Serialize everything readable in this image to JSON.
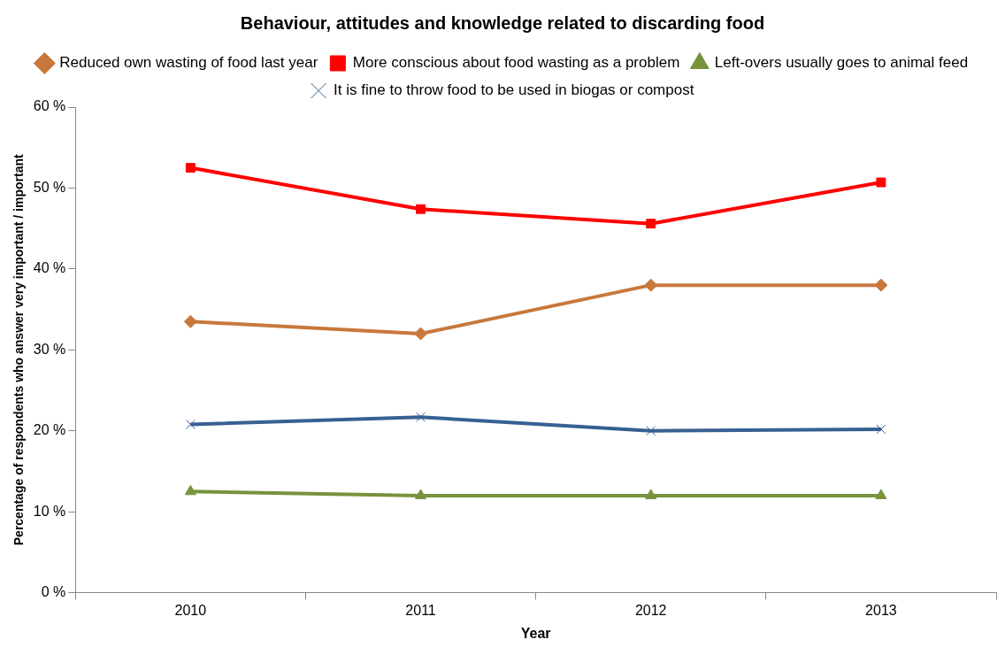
{
  "chart_data": {
    "type": "line",
    "title": "Behaviour, attitudes and knowledge related to discarding food",
    "xlabel": "Year",
    "ylabel": "Percentage of respondents who answer very important / important",
    "categories": [
      "2010",
      "2011",
      "2012",
      "2013"
    ],
    "series": [
      {
        "name": "Reduced own wasting of food last year",
        "color": "#c8783c",
        "marker": "diamond",
        "values": [
          33.5,
          32,
          38,
          38
        ]
      },
      {
        "name": "More conscious about food wasting as a problem",
        "color": "#ff0000",
        "marker": "square",
        "values": [
          52.5,
          47.4,
          45.6,
          50.7
        ]
      },
      {
        "name": "Left-overs usually goes to animal feed",
        "color": "#77933c",
        "marker": "triangle",
        "values": [
          12.5,
          12,
          12,
          12
        ]
      },
      {
        "name": "It is fine to throw food to be used in biogas or compost",
        "color": "#376092",
        "marker": "cross",
        "values": [
          20.8,
          21.7,
          20,
          20.2
        ]
      }
    ],
    "ylim": [
      0,
      60
    ],
    "yticks": [
      {
        "value": 0,
        "label": "0 %"
      },
      {
        "value": 10,
        "label": "10 %"
      },
      {
        "value": 20,
        "label": "20 %"
      },
      {
        "value": 30,
        "label": "30 %"
      },
      {
        "value": 40,
        "label": "40 %"
      },
      {
        "value": 50,
        "label": "50 %"
      },
      {
        "value": 60,
        "label": "60 %"
      }
    ],
    "grid": false,
    "legend": "top"
  }
}
